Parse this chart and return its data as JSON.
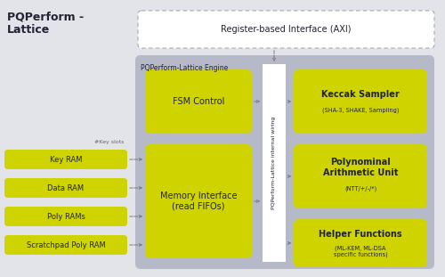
{
  "title": "PQPerform -\nLattice",
  "bg_color": "#e2e4ea",
  "yellow": "#cfd400",
  "white": "#ffffff",
  "gray_engine": "#b5b9c8",
  "dark_text": "#222233",
  "arrow_color": "#777777",
  "axi_label": "Register-based Interface (AXI)",
  "engine_label": "PQPerform-Lattice Engine",
  "internal_wiring_label": "PQPerform-Lattice internal wiring",
  "fsm_label": "FSM Control",
  "mem_label": "Memory Interface\n(read FIFOs)",
  "keccak_label": "Keccak Sampler",
  "keccak_sub": "(SHA-3, SHAKE, Sampling)",
  "poly_arith_label": "Polynominal\nArithmetic Unit",
  "poly_arith_sub": "(NTT/+/-/*)",
  "helper_label": "Helper Functions",
  "helper_sub": "(ML-KEM, ML-DSA\nspecific functions)",
  "key_ram": "Key RAM",
  "data_ram": "Data RAM",
  "poly_rams": "Poly RAMs",
  "scratch_ram": "Scratchpad Poly RAM",
  "key_slots_label": "#Key slots",
  "title_fontsize": 9,
  "label_fontsize": 7,
  "small_fontsize": 5.5,
  "tiny_fontsize": 4.8
}
